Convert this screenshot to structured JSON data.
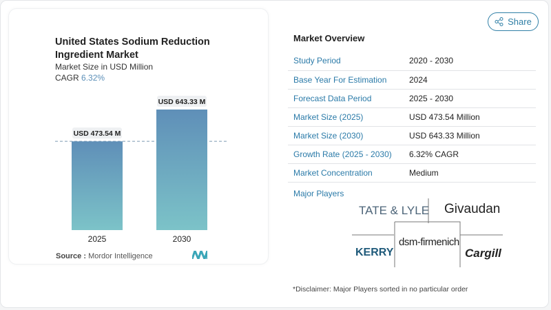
{
  "chart_data": {
    "type": "bar",
    "title": "United States Sodium Reduction Ingredient Market",
    "subtitle": "Market Size in USD Million",
    "cagr_label": "CAGR",
    "cagr_value": "6.32%",
    "categories": [
      "2025",
      "2030"
    ],
    "values": [
      473.54,
      643.33
    ],
    "data_labels": [
      "USD 473.54 M",
      "USD 643.33 M"
    ],
    "ylim": [
      0,
      643.33
    ],
    "reference_line": 473.54,
    "colors": {
      "top": "#5f8fb8",
      "bottom": "#7cc3c8"
    }
  },
  "source": {
    "label": "Source :",
    "value": "Mordor Intelligence"
  },
  "share_label": "Share",
  "overview": {
    "title": "Market Overview",
    "rows": [
      {
        "k": "Study Period",
        "v": "2020 - 2030"
      },
      {
        "k": "Base Year For Estimation",
        "v": "2024"
      },
      {
        "k": "Forecast Data Period",
        "v": "2025 - 2030"
      },
      {
        "k": "Market Size (2025)",
        "v": "USD 473.54 Million"
      },
      {
        "k": "Market Size (2030)",
        "v": "USD 643.33 Million"
      },
      {
        "k": "Growth Rate (2025 - 2030)",
        "v": "6.32% CAGR"
      },
      {
        "k": "Market Concentration",
        "v": "Medium"
      }
    ]
  },
  "players": {
    "title": "Major Players",
    "names": [
      "TATE & LYLE",
      "Givaudan",
      "KERRY",
      "dsm-firmenich",
      "Cargill"
    ]
  },
  "disclaimer": "*Disclaimer: Major Players sorted in no particular order"
}
